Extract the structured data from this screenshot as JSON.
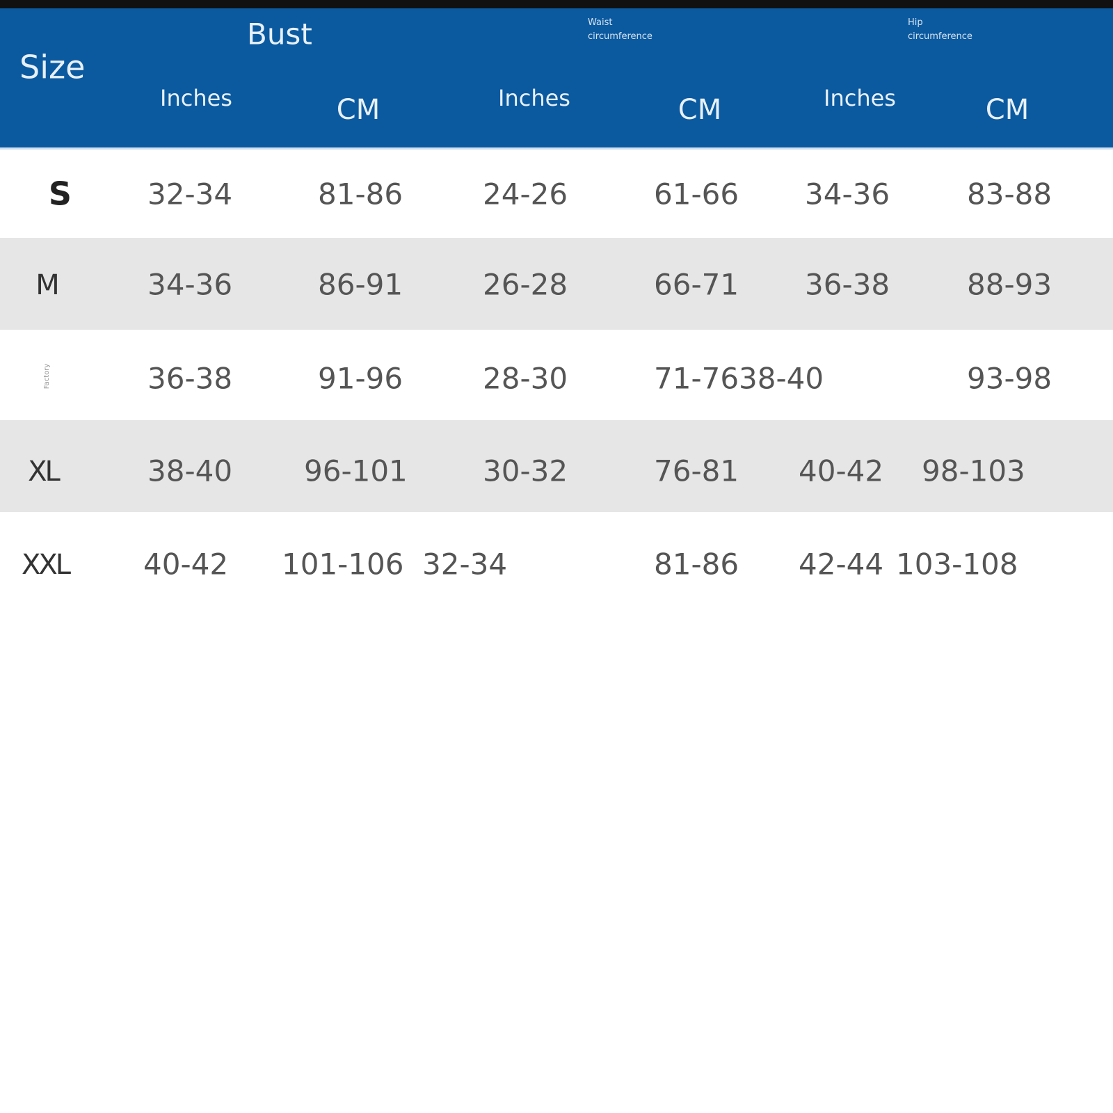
{
  "header": {
    "size": "Size",
    "groups": [
      "Bust",
      "Waist circumference",
      "Hip circumference"
    ],
    "units": [
      "Inches",
      "CM",
      "Inches",
      "CM",
      "Inches",
      "CM"
    ]
  },
  "table": {
    "rows": [
      {
        "size": "S",
        "cells": [
          "32-34",
          "81-86",
          "24-26",
          "61-66",
          "34-36",
          "83-88"
        ]
      },
      {
        "size": "M",
        "cells": [
          "34-36",
          "86-91",
          "26-28",
          "66-71",
          "36-38",
          "88-93"
        ]
      },
      {
        "size": "Factory",
        "cells": [
          "36-38",
          "91-96",
          "28-30",
          "71-7638-40",
          null,
          "93-98"
        ]
      },
      {
        "size": "XL",
        "cells": [
          "38-40",
          "96-101",
          "30-32",
          "76-81",
          "40-42",
          "98-103"
        ]
      },
      {
        "size": "XXL",
        "cells": [
          "40-42",
          "101-106",
          "32-34",
          "81-86",
          "42-44",
          "103-108"
        ]
      }
    ]
  }
}
